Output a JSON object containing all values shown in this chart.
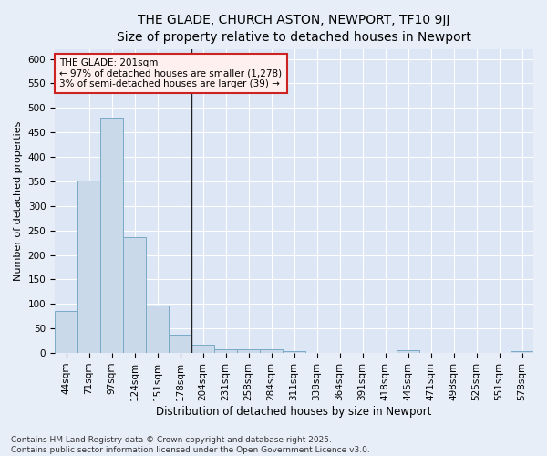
{
  "title": "THE GLADE, CHURCH ASTON, NEWPORT, TF10 9JJ",
  "subtitle": "Size of property relative to detached houses in Newport",
  "xlabel": "Distribution of detached houses by size in Newport",
  "ylabel": "Number of detached properties",
  "categories": [
    "44sqm",
    "71sqm",
    "97sqm",
    "124sqm",
    "151sqm",
    "178sqm",
    "204sqm",
    "231sqm",
    "258sqm",
    "284sqm",
    "311sqm",
    "338sqm",
    "364sqm",
    "391sqm",
    "418sqm",
    "445sqm",
    "471sqm",
    "498sqm",
    "525sqm",
    "551sqm",
    "578sqm"
  ],
  "values": [
    85,
    352,
    480,
    237,
    96,
    38,
    16,
    7,
    8,
    7,
    4,
    0,
    0,
    0,
    0,
    5,
    0,
    0,
    0,
    0,
    4
  ],
  "bar_color": "#c9d9ea",
  "bar_edge_color": "#7aaac8",
  "annotation_box_text": "THE GLADE: 201sqm\n← 97% of detached houses are smaller (1,278)\n3% of semi-detached houses are larger (39) →",
  "annotation_box_facecolor": "#fff0f0",
  "annotation_box_edgecolor": "#cc2222",
  "subject_line_color": "#222222",
  "ylim": [
    0,
    620
  ],
  "yticks": [
    0,
    50,
    100,
    150,
    200,
    250,
    300,
    350,
    400,
    450,
    500,
    550,
    600
  ],
  "fig_bg_color": "#e8eef8",
  "ax_bg_color": "#dce6f5",
  "grid_color": "#ffffff",
  "footer_text": "Contains HM Land Registry data © Crown copyright and database right 2025.\nContains public sector information licensed under the Open Government Licence v3.0.",
  "title_fontsize": 10,
  "subtitle_fontsize": 9,
  "xlabel_fontsize": 8.5,
  "ylabel_fontsize": 8,
  "tick_fontsize": 7.5,
  "footer_fontsize": 6.5,
  "annotation_fontsize": 7.5
}
